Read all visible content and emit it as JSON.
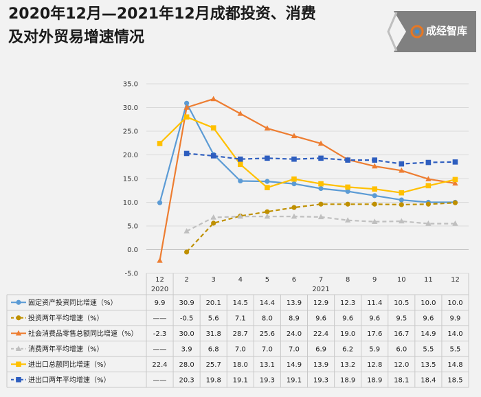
{
  "header": {
    "title_line1": "2020年12月—2021年12月成都投资、消费",
    "title_line2": "及对外贸易增速情况",
    "logo_text": "成经智库"
  },
  "colors": {
    "fixed_investment": "#5b9bd5",
    "investment_2yr": "#bf9000",
    "retail": "#ed7d31",
    "retail_2yr": "#bfbfbf",
    "trade": "#ffc000",
    "trade_2yr": "#2e5ebf",
    "background": "#f2f2f2",
    "logo_bg": "#808080"
  },
  "chart_data": {
    "type": "line",
    "title": "",
    "ylim": [
      -5.0,
      35.0
    ],
    "y_ticks": [
      "35.0",
      "30.0",
      "25.0",
      "20.0",
      "15.0",
      "10.0",
      "5.0",
      "0.0",
      "-5.0"
    ],
    "grid": "horizontal",
    "categories": [
      "12",
      "2",
      "3",
      "4",
      "5",
      "6",
      "7",
      "8",
      "9",
      "10",
      "11",
      "12"
    ],
    "year_labels": [
      "2020",
      "2021"
    ],
    "series": [
      {
        "name": "固定资产投资同比增速（%）",
        "style": "solid",
        "marker": "circle",
        "values": [
          9.9,
          30.9,
          20.1,
          14.5,
          14.4,
          13.9,
          12.9,
          12.3,
          11.4,
          10.5,
          10.0,
          10.0
        ],
        "labels": [
          "9.9",
          "30.9",
          "20.1",
          "14.5",
          "14.4",
          "13.9",
          "12.9",
          "12.3",
          "11.4",
          "10.5",
          "10.0",
          "10.0"
        ]
      },
      {
        "name": "投资两年平均增速（%）",
        "style": "dashed",
        "marker": "circle",
        "values": [
          null,
          -0.5,
          5.6,
          7.1,
          8.0,
          8.9,
          9.6,
          9.6,
          9.6,
          9.5,
          9.6,
          9.9
        ],
        "labels": [
          "——",
          "-0.5",
          "5.6",
          "7.1",
          "8.0",
          "8.9",
          "9.6",
          "9.6",
          "9.6",
          "9.5",
          "9.6",
          "9.9"
        ]
      },
      {
        "name": "社会消费品零售总额同比增速（%）",
        "style": "solid",
        "marker": "triangle",
        "values": [
          -2.3,
          30.0,
          31.8,
          28.7,
          25.6,
          24.0,
          22.4,
          19.0,
          17.6,
          16.7,
          14.9,
          14.0
        ],
        "labels": [
          "-2.3",
          "30.0",
          "31.8",
          "28.7",
          "25.6",
          "24.0",
          "22.4",
          "19.0",
          "17.6",
          "16.7",
          "14.9",
          "14.0"
        ]
      },
      {
        "name": "消费两年平均增速（%）",
        "style": "dashed",
        "marker": "triangle",
        "values": [
          null,
          3.9,
          6.8,
          7.0,
          7.0,
          7.0,
          6.9,
          6.2,
          5.9,
          6.0,
          5.5,
          5.5
        ],
        "labels": [
          "——",
          "3.9",
          "6.8",
          "7.0",
          "7.0",
          "7.0",
          "6.9",
          "6.2",
          "5.9",
          "6.0",
          "5.5",
          "5.5"
        ]
      },
      {
        "name": "进出口总额同比增速（%）",
        "style": "solid",
        "marker": "square",
        "values": [
          22.4,
          28.0,
          25.7,
          18.0,
          13.1,
          14.9,
          13.9,
          13.2,
          12.8,
          12.0,
          13.5,
          14.8
        ],
        "labels": [
          "22.4",
          "28.0",
          "25.7",
          "18.0",
          "13.1",
          "14.9",
          "13.9",
          "13.2",
          "12.8",
          "12.0",
          "13.5",
          "14.8"
        ]
      },
      {
        "name": "进出口两年平均增速（%）",
        "style": "dashed",
        "marker": "square",
        "values": [
          null,
          20.3,
          19.8,
          19.1,
          19.3,
          19.1,
          19.3,
          18.9,
          18.9,
          18.1,
          18.4,
          18.5
        ],
        "labels": [
          "——",
          "20.3",
          "19.8",
          "19.1",
          "19.3",
          "19.1",
          "19.3",
          "18.9",
          "18.9",
          "18.1",
          "18.4",
          "18.5"
        ]
      }
    ]
  }
}
